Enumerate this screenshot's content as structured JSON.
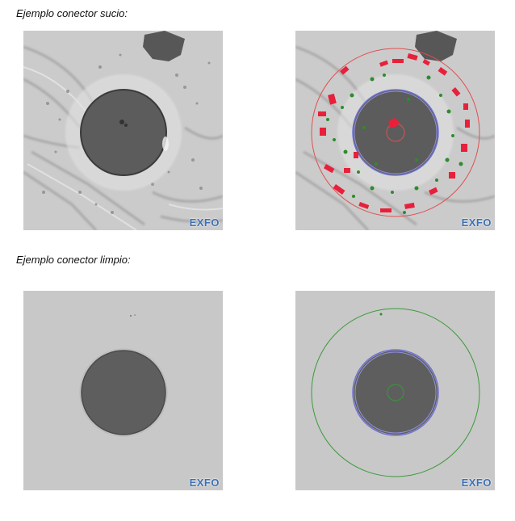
{
  "sections": {
    "dirty": {
      "heading": "Ejemplo conector sucio:"
    },
    "clean": {
      "heading": "Ejemplo conector limpio:"
    }
  },
  "logo_text": "EXFO",
  "colors": {
    "defect_red": "#e8203a",
    "defect_green": "#2e8b2e",
    "ring_red": "#e05050",
    "ring_green": "#3a9a3a",
    "cladding_blue": "#7070d0",
    "core": "#585858",
    "dirty_background": "#c9c9c9",
    "clean_background": "#c6c6c6"
  }
}
